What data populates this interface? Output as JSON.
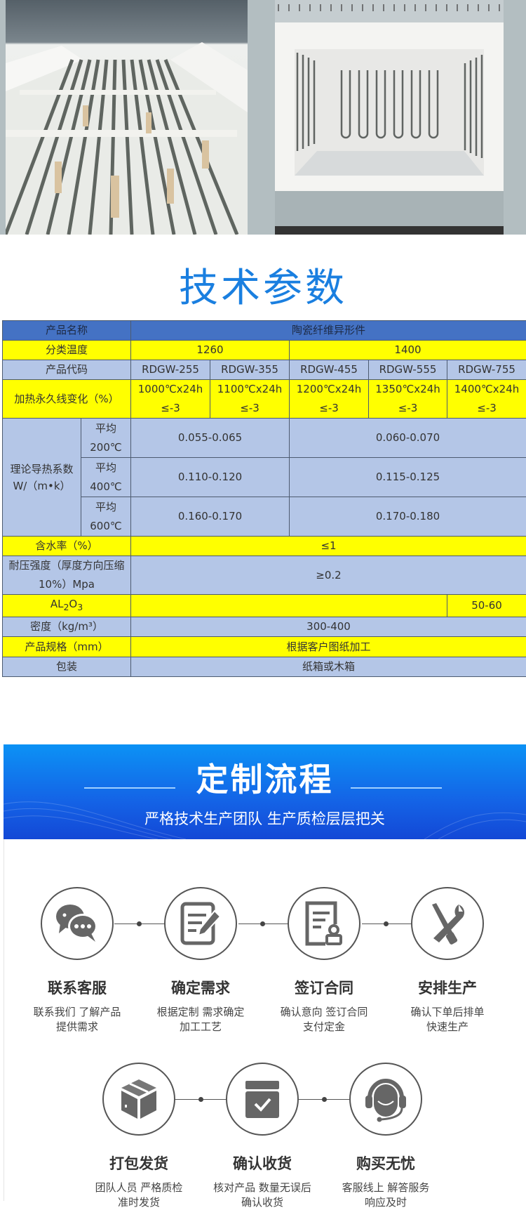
{
  "title": "技术参数",
  "table": {
    "name_label": "产品名称",
    "name_value": "陶瓷纤维异形件",
    "temp_label": "分类温度",
    "temp_values": [
      "1260",
      "1400"
    ],
    "code_label": "产品代码",
    "codes": [
      "RDGW-255",
      "RDGW-355",
      "RDGW-455",
      "RDGW-555",
      "RDGW-755"
    ],
    "heat_label": "加热永久线变化（%）",
    "heat_values": [
      {
        "t": "1000℃x24h",
        "v": "≤-3"
      },
      {
        "t": "1100℃x24h",
        "v": "≤-3"
      },
      {
        "t": "1200℃x24h",
        "v": "≤-3"
      },
      {
        "t": "1350℃x24h",
        "v": "≤-3"
      },
      {
        "t": "1400℃x24h",
        "v": "≤-3"
      }
    ],
    "cond_label": "理论导热系数W/（m•k）",
    "cond_rows": [
      {
        "avg": "平均",
        "temp": "200℃",
        "a": "0.055-0.065",
        "b": "0.060-0.070"
      },
      {
        "avg": "平均",
        "temp": "400℃",
        "a": "0.110-0.120",
        "b": "0.115-0.125"
      },
      {
        "avg": "平均",
        "temp": "600℃",
        "a": "0.160-0.170",
        "b": "0.170-0.180"
      }
    ],
    "water_label": "含水率（%）",
    "water_value": "≤1",
    "press_label": "耐压强度（厚度方向压缩 10%）Mpa",
    "press_value": "≥0.2",
    "al_label_main": "AL",
    "al_sub1": "2",
    "al_mid": "O",
    "al_sub2": "3",
    "al_value": "",
    "al_last": "50-60",
    "density_label": "密度（kg/m³）",
    "density_value": "300-400",
    "spec_label": "产品规格（mm）",
    "spec_value": "根据客户图纸加工",
    "pack_label": "包装",
    "pack_value": "纸箱或木箱"
  },
  "banner": {
    "title": "定制流程",
    "subtitle": "严格技术生产团队 生产质检层层把关"
  },
  "steps": [
    {
      "icon": "chat-bubbles-icon",
      "title": "联系客服",
      "d1": "联系我们 了解产品",
      "d2": "提供需求"
    },
    {
      "icon": "edit-document-icon",
      "title": "确定需求",
      "d1": "根据定制 需求确定",
      "d2": "加工工艺"
    },
    {
      "icon": "contract-stamp-icon",
      "title": "签订合同",
      "d1": "确认意向 签订合同",
      "d2": "支付定金"
    },
    {
      "icon": "tools-icon",
      "title": "安排生产",
      "d1": "确认下单后排单",
      "d2": "快速生产"
    },
    {
      "icon": "package-box-icon",
      "title": "打包发货",
      "d1": "团队人员 严格质检",
      "d2": "准时发货"
    },
    {
      "icon": "box-check-icon",
      "title": "确认收货",
      "d1": "核对产品 数量无误后",
      "d2": "确认收货"
    },
    {
      "icon": "headset-support-icon",
      "title": "购买无忧",
      "d1": "客服线上 解答服务",
      "d2": "响应及时"
    }
  ],
  "colors": {
    "title_blue": "#1a7fe0",
    "header_blue": "#4472c4",
    "light_blue": "#b4c6e7",
    "yellow": "#ffff00",
    "banner_blue": "#1463e6"
  }
}
